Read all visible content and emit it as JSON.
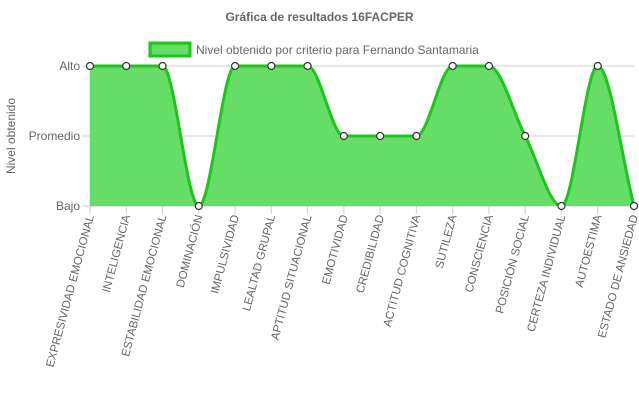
{
  "chart_data": {
    "type": "area",
    "title": "Gráfica de resultados 16FACPER",
    "ylabel": "Nivel obtenido",
    "xlabel": "",
    "y_levels": [
      "Bajo",
      "Promedio",
      "Alto"
    ],
    "ylim": [
      0,
      2
    ],
    "grid": true,
    "legend_position": "top",
    "categories": [
      "EXPRESIVIDAD EMOCIONAL",
      "INTELIGENCIA",
      "ESTABILIDAD EMOCIONAL",
      "DOMINACIÓN",
      "IMPULSIVIDAD",
      "LEALTAD GRUPAL",
      "APTITUD SITUACIONAL",
      "EMOTIVIDAD",
      "CREDIBILIDAD",
      "ACTITUD COGNITIVA",
      "SUTILEZA",
      "CONSCIENCIA",
      "POSICIÓN SOCIAL",
      "CERTEZA INDIVIDUAL",
      "AUTOESTIMA",
      "ESTADO DE ANSIEDAD"
    ],
    "series": [
      {
        "name": "Nivel obtenido por criterio para Fernando Santamaria",
        "values": [
          2,
          2,
          2,
          0,
          2,
          2,
          2,
          1,
          1,
          1,
          2,
          2,
          1,
          0,
          2,
          0
        ],
        "color": "#1fc41f",
        "fill": "#66dd66"
      }
    ]
  }
}
